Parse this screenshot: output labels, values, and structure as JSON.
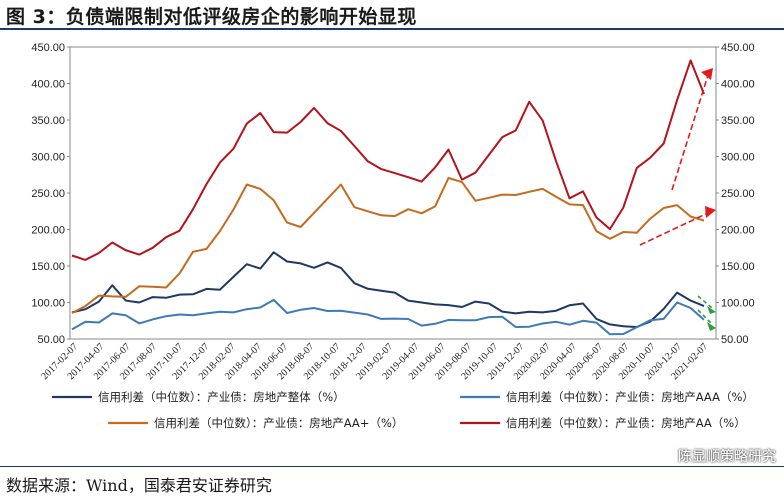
{
  "title": "图 3：负债端限制对低评级房企的影响开始显现",
  "source": "数据来源：Wind，国泰君安证券研究",
  "watermark": "陈显顺策略研究",
  "chart_data": {
    "type": "line",
    "y_left": {
      "min": 50,
      "max": 450,
      "ticks": [
        "450.00",
        "400.00",
        "350.00",
        "300.00",
        "250.00",
        "200.00",
        "150.00",
        "100.00",
        "50.00"
      ]
    },
    "y_right": {
      "min": 50,
      "max": 450,
      "ticks": [
        "450.00",
        "400.00",
        "350.00",
        "300.00",
        "250.00",
        "200.00",
        "150.00",
        "100.00",
        "50.00"
      ]
    },
    "x_ticks": [
      "2017-02-07",
      "2017-04-07",
      "2017-06-07",
      "2017-08-07",
      "2017-10-07",
      "2017-12-07",
      "2018-02-07",
      "2018-04-07",
      "2018-06-07",
      "2018-08-07",
      "2018-10-07",
      "2018-12-07",
      "2019-02-07",
      "2019-04-07",
      "2019-06-07",
      "2019-08-07",
      "2019-10-07",
      "2019-12-07",
      "2020-02-07",
      "2020-04-07",
      "2020-06-07",
      "2020-08-07",
      "2020-10-07",
      "2020-12-07",
      "2021-02-07"
    ],
    "series": [
      {
        "name": "信用利差（中位数）：产业债：房地产整体（%）",
        "color": "#1f3864",
        "values": [
          90,
          92,
          100,
          120,
          105,
          100,
          105,
          110,
          112,
          110,
          115,
          120,
          135,
          150,
          150,
          170,
          155,
          150,
          150,
          155,
          145,
          130,
          120,
          115,
          110,
          105,
          100,
          95,
          100,
          95,
          100,
          95,
          90,
          85,
          85,
          90,
          90,
          95,
          95,
          80,
          70,
          65,
          70,
          75,
          90,
          110,
          105,
          95
        ]
      },
      {
        "name": "信用利差（中位数）：产业债：房地产AAA（%）",
        "color": "#3d7ab8",
        "values": [
          62,
          70,
          75,
          85,
          80,
          75,
          78,
          80,
          80,
          85,
          85,
          85,
          90,
          92,
          92,
          100,
          88,
          90,
          90,
          92,
          90,
          85,
          80,
          80,
          78,
          75,
          72,
          72,
          75,
          72,
          78,
          80,
          78,
          70,
          68,
          70,
          70,
          72,
          75,
          70,
          60,
          58,
          65,
          72,
          80,
          100,
          90,
          80
        ]
      },
      {
        "name": "信用利差（中位数）：产业债：房地产AA+（%）",
        "color": "#c56b1e",
        "values": [
          90,
          95,
          105,
          115,
          110,
          120,
          115,
          125,
          140,
          165,
          180,
          200,
          225,
          255,
          260,
          240,
          205,
          210,
          225,
          240,
          255,
          235,
          225,
          215,
          225,
          230,
          220,
          225,
          275,
          265,
          235,
          250,
          250,
          245,
          245,
          260,
          245,
          230,
          240,
          200,
          185,
          190,
          200,
          215,
          225,
          240,
          220,
          210
        ]
      },
      {
        "name": "信用利差（中位数）：产业债：房地产AA（%）",
        "color": "#b5121b",
        "values": [
          160,
          165,
          170,
          180,
          165,
          170,
          175,
          185,
          205,
          230,
          260,
          285,
          315,
          345,
          355,
          340,
          335,
          345,
          360,
          350,
          335,
          310,
          300,
          285,
          275,
          265,
          270,
          285,
          305,
          275,
          280,
          300,
          320,
          340,
          375,
          345,
          300,
          245,
          250,
          210,
          205,
          230,
          280,
          305,
          320,
          375,
          425,
          390
        ]
      }
    ]
  },
  "legend": [
    "信用利差（中位数）：产业债：房地产整体（%）",
    "信用利差（中位数）：产业债：房地产AAA（%）",
    "信用利差（中位数）：产业债：房地产AA+（%）",
    "信用利差（中位数）：产业债：房地产AA（%）"
  ]
}
